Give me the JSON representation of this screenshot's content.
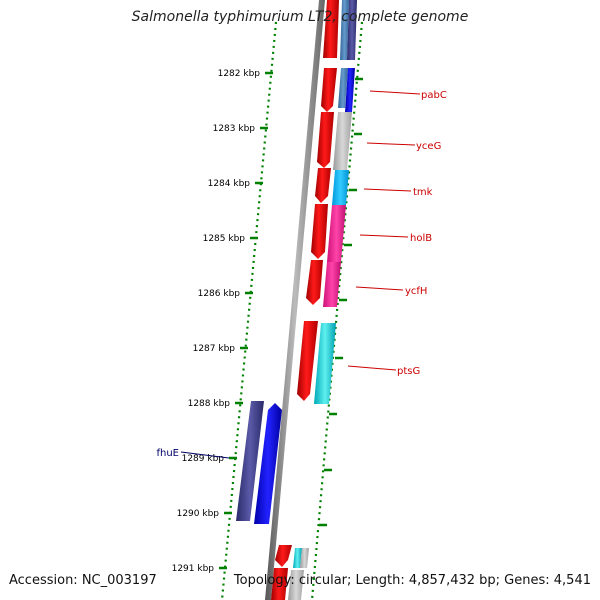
{
  "title": "Salmonella typhimurium LT2, complete genome",
  "footer": {
    "accession": "Accession: NC_003197",
    "stats": "Topology: circular; Length: 4,857,432 bp; Genes: 4,541"
  },
  "ticks": [
    {
      "label": "1282 kbp"
    },
    {
      "label": "1283 kbp"
    },
    {
      "label": "1284 kbp"
    },
    {
      "label": "1285 kbp"
    },
    {
      "label": "1286 kbp"
    },
    {
      "label": "1287 kbp"
    },
    {
      "label": "1288 kbp"
    },
    {
      "label": "1289 kbp"
    },
    {
      "label": "1290 kbp"
    },
    {
      "label": "1291 kbp"
    }
  ],
  "genes": [
    {
      "name": "pabC",
      "color": "#cc0000"
    },
    {
      "name": "yceG",
      "color": "#cc0000"
    },
    {
      "name": "tmk",
      "color": "#cc0000"
    },
    {
      "name": "holB",
      "color": "#cc0000"
    },
    {
      "name": "ycfH",
      "color": "#cc0000"
    },
    {
      "name": "ptsG",
      "color": "#cc0000"
    },
    {
      "name": "fhuE",
      "color": "#000066"
    }
  ],
  "colors": {
    "cds": "#ff0000",
    "backbone": "#888888",
    "dots": "#008000",
    "tick_label": "#000000"
  }
}
